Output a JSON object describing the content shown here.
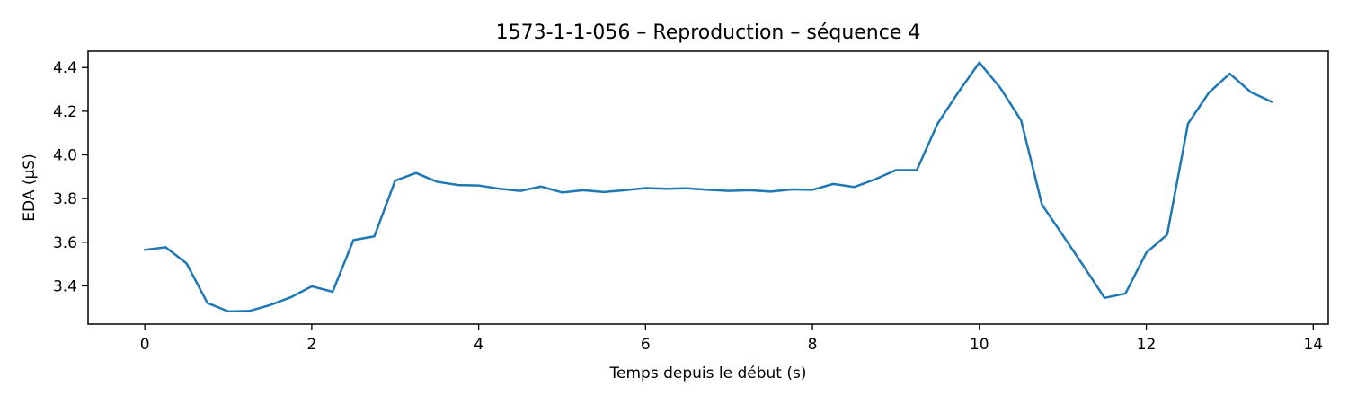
{
  "chart_data": {
    "type": "line",
    "title": "1573-1-1-056 – Reproduction – séquence 4",
    "xlabel": "Temps depuis le début (s)",
    "ylabel": "EDA (µS)",
    "xlim": [
      -0.68,
      14.18
    ],
    "ylim": [
      3.225,
      4.475
    ],
    "xticks": [
      0,
      2,
      4,
      6,
      8,
      10,
      12,
      14
    ],
    "xtick_labels": [
      "0",
      "2",
      "4",
      "6",
      "8",
      "10",
      "12",
      "14"
    ],
    "yticks": [
      3.4,
      3.6,
      3.8,
      4.0,
      4.2,
      4.4
    ],
    "ytick_labels": [
      "3.4",
      "3.6",
      "3.8",
      "4.0",
      "4.2",
      "4.4"
    ],
    "grid": false,
    "line_color": "#1f77b4",
    "series": [
      {
        "x": [
          0,
          0.25,
          0.5,
          0.75,
          1.0,
          1.25,
          1.5,
          1.75,
          2.0,
          2.25,
          2.5,
          2.75,
          3.0,
          3.25,
          3.5,
          3.75,
          4.0,
          4.25,
          4.5,
          4.75,
          5.0,
          5.25,
          5.5,
          5.75,
          6.0,
          6.25,
          6.5,
          6.75,
          7.0,
          7.25,
          7.5,
          7.75,
          8.0,
          8.25,
          8.5,
          8.75,
          9.0,
          9.25,
          9.5,
          9.75,
          10.0,
          10.25,
          10.5,
          10.75,
          11.0,
          11.25,
          11.5,
          11.75,
          12.0,
          12.25,
          12.5,
          12.75,
          13.0,
          13.25,
          13.5
        ],
        "y": [
          3.565,
          3.577,
          3.503,
          3.322,
          3.283,
          3.285,
          3.312,
          3.348,
          3.398,
          3.373,
          3.61,
          3.627,
          3.882,
          3.917,
          3.877,
          3.862,
          3.86,
          3.845,
          3.835,
          3.855,
          3.828,
          3.838,
          3.83,
          3.838,
          3.848,
          3.845,
          3.847,
          3.84,
          3.835,
          3.838,
          3.832,
          3.842,
          3.84,
          3.867,
          3.853,
          3.888,
          3.93,
          3.93,
          4.143,
          4.288,
          4.423,
          4.307,
          4.158,
          3.772,
          3.632,
          3.49,
          3.345,
          3.365,
          3.552,
          3.635,
          4.143,
          4.285,
          4.372,
          4.288,
          4.243
        ]
      }
    ]
  }
}
